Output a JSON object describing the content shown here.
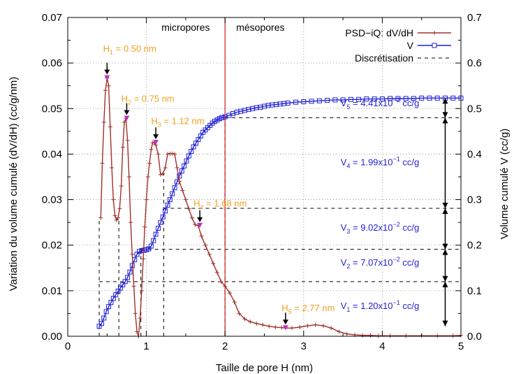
{
  "chart_data": {
    "type": "line",
    "xlabel": "Taille de pore H (nm)",
    "ylabel": "Variation du volume cumulé (dV/dH) (cc/g/nm)",
    "y2label": "Volume cumulé V (cc/g)",
    "xlim": [
      0,
      5
    ],
    "ylim": [
      0,
      0.07
    ],
    "y2lim": [
      0,
      0.7
    ],
    "xticks": [
      "0",
      "1",
      "2",
      "3",
      "4",
      "5"
    ],
    "yticks": [
      "0.00",
      "0.01",
      "0.02",
      "0.03",
      "0.04",
      "0.05",
      "0.06",
      "0.07"
    ],
    "y2ticks": [
      "0.0",
      "0.1",
      "0.2",
      "0.3",
      "0.4",
      "0.5",
      "0.6",
      "0.7"
    ],
    "grid": true,
    "legend_position": "top-right",
    "colors": {
      "psd": "#a0302b",
      "v": "#1f1fd6",
      "annot": "#f0a020",
      "vertical_line": "#cc2020",
      "magenta": "#c030c0"
    },
    "legend": [
      {
        "label": "PSD−iQ: dV/dH"
      },
      {
        "label": "V"
      },
      {
        "label": "Discrétisation"
      }
    ],
    "regions": [
      {
        "label": "micropores",
        "x": 1.5
      },
      {
        "label": "mésopores",
        "x": 2.45
      }
    ],
    "region_boundary_x": 2.0,
    "series": [
      {
        "name": "PSD−iQ: dV/dH",
        "axis": "y",
        "x": [
          0.42,
          0.44,
          0.46,
          0.48,
          0.5,
          0.52,
          0.54,
          0.56,
          0.58,
          0.6,
          0.62,
          0.64,
          0.66,
          0.68,
          0.7,
          0.72,
          0.74,
          0.76,
          0.78,
          0.8,
          0.82,
          0.84,
          0.86,
          0.88,
          0.9,
          0.92,
          0.94,
          0.96,
          0.98,
          1.0,
          1.02,
          1.04,
          1.06,
          1.08,
          1.1,
          1.12,
          1.15,
          1.18,
          1.21,
          1.24,
          1.27,
          1.3,
          1.33,
          1.36,
          1.39,
          1.42,
          1.46,
          1.5,
          1.54,
          1.58,
          1.62,
          1.66,
          1.7,
          1.75,
          1.8,
          1.85,
          1.9,
          1.95,
          2.0,
          2.06,
          2.12,
          2.18,
          2.25,
          2.32,
          2.4,
          2.48,
          2.56,
          2.64,
          2.72,
          2.77,
          2.85,
          2.95,
          3.05,
          3.15,
          3.25,
          3.35,
          3.45,
          3.55,
          3.65,
          3.75,
          3.85,
          3.95,
          4.1,
          4.3,
          4.5,
          4.7,
          4.9,
          5.0
        ],
        "y": [
          0.026,
          0.038,
          0.047,
          0.054,
          0.0567,
          0.055,
          0.046,
          0.037,
          0.03,
          0.0265,
          0.0255,
          0.026,
          0.028,
          0.033,
          0.0415,
          0.047,
          0.0478,
          0.043,
          0.035,
          0.025,
          0.018,
          0.011,
          0.005,
          0.001,
          0.0,
          0.004,
          0.01,
          0.017,
          0.024,
          0.03,
          0.035,
          0.038,
          0.041,
          0.0425,
          0.0425,
          0.042,
          0.04,
          0.0355,
          0.0357,
          0.037,
          0.04,
          0.0401,
          0.0401,
          0.04,
          0.037,
          0.034,
          0.032,
          0.03,
          0.028,
          0.026,
          0.0245,
          0.0243,
          0.022,
          0.02,
          0.018,
          0.016,
          0.014,
          0.012,
          0.011,
          0.0095,
          0.0075,
          0.005,
          0.0038,
          0.0032,
          0.0028,
          0.0025,
          0.0022,
          0.002,
          0.0019,
          0.0018,
          0.0018,
          0.002,
          0.0023,
          0.0025,
          0.0023,
          0.0018,
          0.001,
          0.0005,
          0.0003,
          0.0002,
          0.0002,
          0.0001,
          0.0001,
          0.0001,
          0.0001,
          0.0001,
          0.0001,
          0.0002
        ]
      },
      {
        "name": "V",
        "axis": "y2",
        "x": [
          0.4,
          0.43,
          0.46,
          0.49,
          0.52,
          0.55,
          0.58,
          0.61,
          0.64,
          0.67,
          0.7,
          0.73,
          0.76,
          0.79,
          0.82,
          0.85,
          0.88,
          0.91,
          0.94,
          0.97,
          1.0,
          1.03,
          1.06,
          1.09,
          1.12,
          1.15,
          1.18,
          1.21,
          1.24,
          1.27,
          1.3,
          1.33,
          1.36,
          1.39,
          1.42,
          1.45,
          1.48,
          1.51,
          1.54,
          1.57,
          1.6,
          1.63,
          1.66,
          1.69,
          1.72,
          1.75,
          1.78,
          1.81,
          1.84,
          1.87,
          1.9,
          1.93,
          1.96,
          2.0,
          2.05,
          2.1,
          2.15,
          2.2,
          2.25,
          2.3,
          2.35,
          2.4,
          2.45,
          2.5,
          2.55,
          2.6,
          2.65,
          2.7,
          2.75,
          2.8,
          2.9,
          3.0,
          3.1,
          3.2,
          3.3,
          3.4,
          3.5,
          3.6,
          3.7,
          3.8,
          3.9,
          4.0,
          4.1,
          4.2,
          4.3,
          4.4,
          4.5,
          4.6,
          4.7,
          4.8,
          4.9,
          5.0
        ],
        "y": [
          0.022,
          0.028,
          0.04,
          0.054,
          0.065,
          0.074,
          0.083,
          0.091,
          0.099,
          0.106,
          0.113,
          0.12,
          0.129,
          0.141,
          0.155,
          0.168,
          0.18,
          0.186,
          0.188,
          0.189,
          0.19,
          0.192,
          0.198,
          0.21,
          0.224,
          0.237,
          0.25,
          0.262,
          0.275,
          0.288,
          0.3,
          0.313,
          0.326,
          0.339,
          0.352,
          0.363,
          0.374,
          0.385,
          0.396,
          0.406,
          0.416,
          0.424,
          0.432,
          0.44,
          0.448,
          0.453,
          0.458,
          0.463,
          0.468,
          0.472,
          0.475,
          0.478,
          0.48,
          0.482,
          0.485,
          0.489,
          0.492,
          0.494,
          0.496,
          0.498,
          0.5,
          0.502,
          0.503,
          0.505,
          0.507,
          0.508,
          0.509,
          0.51,
          0.511,
          0.512,
          0.514,
          0.515,
          0.516,
          0.517,
          0.518,
          0.519,
          0.519,
          0.52,
          0.52,
          0.521,
          0.521,
          0.521,
          0.522,
          0.522,
          0.522,
          0.522,
          0.523,
          0.523,
          0.523,
          0.523,
          0.523,
          0.523
        ]
      }
    ],
    "peaks": [
      {
        "label": "H",
        "sub": "1",
        "value": " = 0.50 nm",
        "x": 0.5,
        "y": 0.0567,
        "tx": 0.45,
        "ty": 0.0625
      },
      {
        "label": "H",
        "sub": "2",
        "value": " = 0.75 nm",
        "x": 0.75,
        "y": 0.0478,
        "tx": 0.68,
        "ty": 0.0515
      },
      {
        "label": "H",
        "sub": "3",
        "value": " = 1.12 nm",
        "x": 1.12,
        "y": 0.0425,
        "tx": 1.06,
        "ty": 0.0466
      },
      {
        "label": "H",
        "sub": "4",
        "value": " = 1.68 nm",
        "x": 1.68,
        "y": 0.0243,
        "tx": 1.6,
        "ty": 0.0285
      },
      {
        "label": "H",
        "sub": "5",
        "value": " = 2.77 nm",
        "x": 2.77,
        "y": 0.0018,
        "tx": 2.72,
        "ty": 0.0055
      }
    ],
    "discretisation": {
      "vlines": [
        {
          "x": 0.4,
          "ytop": 0.026
        },
        {
          "x": 0.65,
          "ytop": 0.026
        },
        {
          "x": 0.93,
          "ytop": 0.0195
        },
        {
          "x": 1.22,
          "ytop": 0.0357
        },
        {
          "x": 2.0,
          "ytop": 0.048
        }
      ],
      "hlines": [
        {
          "x0": 0.4,
          "y2": 0.12
        },
        {
          "x0": 0.93,
          "y2": 0.191
        },
        {
          "x0": 1.22,
          "y2": 0.281
        },
        {
          "x0": 2.0,
          "y2": 0.48
        }
      ]
    },
    "volume_arrows": {
      "x": 4.8,
      "levels": [
        0.022,
        0.12,
        0.191,
        0.281,
        0.48,
        0.523
      ]
    },
    "volume_labels": [
      {
        "label": "V",
        "sub": "1",
        "mant": " = 1.20x10",
        "exp": "−1",
        "unit": " cc/g",
        "tx": 3.47,
        "y2": 0.06
      },
      {
        "label": "V",
        "sub": "2",
        "mant": " = 7.07x10",
        "exp": "−2",
        "unit": " cc/g",
        "tx": 3.47,
        "y2": 0.155
      },
      {
        "label": "V",
        "sub": "3",
        "mant": " = 9.02x10",
        "exp": "−2",
        "unit": " cc/g",
        "tx": 3.47,
        "y2": 0.232
      },
      {
        "label": "V",
        "sub": "4",
        "mant": " = 1.99x10",
        "exp": "−1",
        "unit": " cc/g",
        "tx": 3.47,
        "y2": 0.375
      },
      {
        "label": "V",
        "sub": "5",
        "mant": " = 4.41x10",
        "exp": "−2",
        "unit": " cc/g",
        "tx": 3.47,
        "y2": 0.505
      }
    ]
  }
}
